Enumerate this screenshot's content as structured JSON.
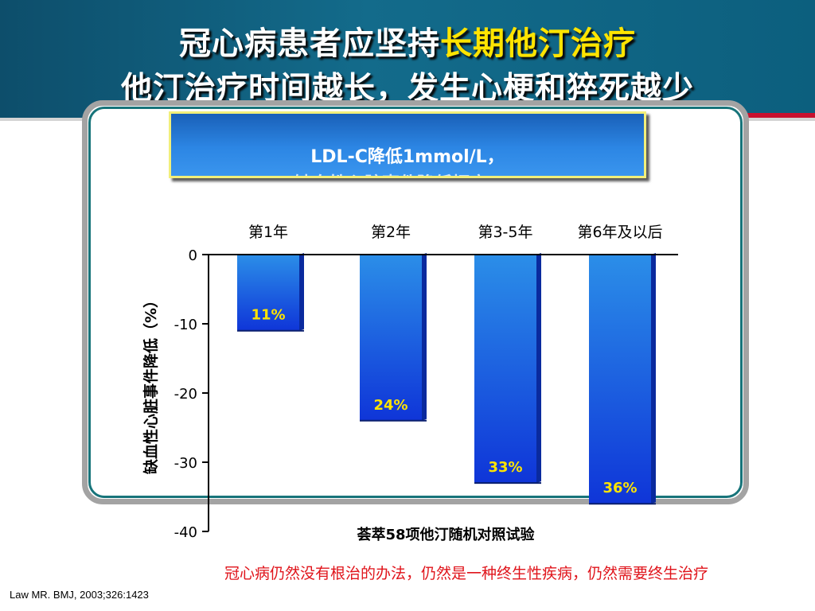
{
  "title": {
    "line1_prefix": "冠心病患者应坚持",
    "line1_highlight": "长期他汀治疗",
    "line2": "他汀治疗时间越长，发生心梗和猝死越少"
  },
  "callout": {
    "line1": "LDL-C降低1mmol/L，",
    "line2": "缺血性心脏事件降低幅度(%)"
  },
  "chart_data": {
    "type": "bar",
    "categories": [
      "第1年",
      "第2年",
      "第3-5年",
      "第6年及以后"
    ],
    "values": [
      -11,
      -24,
      -33,
      -36
    ],
    "data_labels": [
      "11%",
      "24%",
      "33%",
      "36%"
    ],
    "ylabel": "缺血性心脏事件降低（%）",
    "ylim": [
      -40,
      0
    ],
    "yticks": [
      "0",
      "-10",
      "-20",
      "-30",
      "-40"
    ],
    "ytick_values": [
      0,
      -10,
      -20,
      -30,
      -40
    ],
    "subtitle": "荟萃58项他汀随机对照试验",
    "category_axis_position": "top",
    "grid": false,
    "bar_color_top": "#2b8ee8",
    "bar_color_bottom": "#0f35d8",
    "data_label_color": "#ffe400"
  },
  "note": "冠心病仍然没有根治的办法，仍然是一种终生性疾病，仍然需要终生治疗",
  "citation": "Law MR. BMJ, 2003;326:1423"
}
